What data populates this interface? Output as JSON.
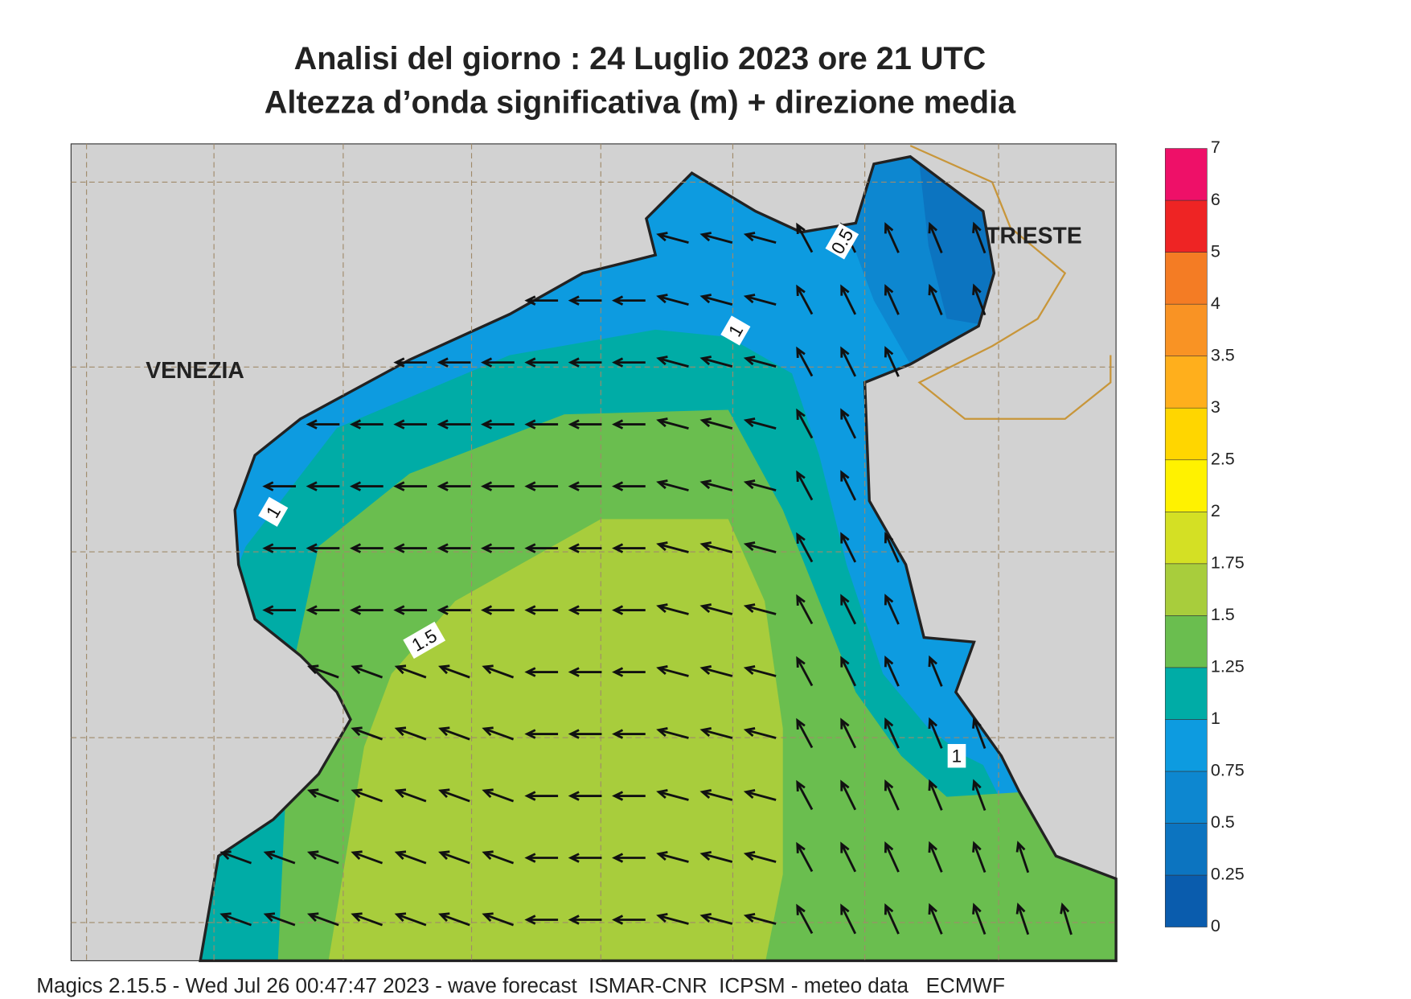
{
  "title": {
    "line1": "Analisi del giorno :  24  Luglio   2023   ore 21 UTC",
    "line2": "Altezza d’onda significativa (m) + direzione media"
  },
  "map": {
    "cities": [
      "VENEZIA",
      "TRIESTE"
    ],
    "contour_labels": [
      "0.5",
      "1",
      "1",
      "1",
      "1.5"
    ]
  },
  "legend": {
    "ticks": [
      0,
      0.25,
      0.5,
      0.75,
      1,
      1.25,
      1.5,
      1.75,
      2,
      2.5,
      3,
      3.5,
      4,
      5,
      6,
      7
    ],
    "colors": [
      "#0a5cad",
      "#0c74c0",
      "#0d87d0",
      "#0d9be0",
      "#00aca6",
      "#6abe4f",
      "#a8cd3c",
      "#d4e024",
      "#fff200",
      "#ffd600",
      "#ffaf1c",
      "#f99324",
      "#f47c24",
      "#ee2424",
      "#ee1068"
    ]
  },
  "footer": "Magics 2.15.5 - Wed Jul 26 00:47:47 2023 - wave forecast  ISMAR-CNR  ICPSM - meteo data   ECMWF"
}
